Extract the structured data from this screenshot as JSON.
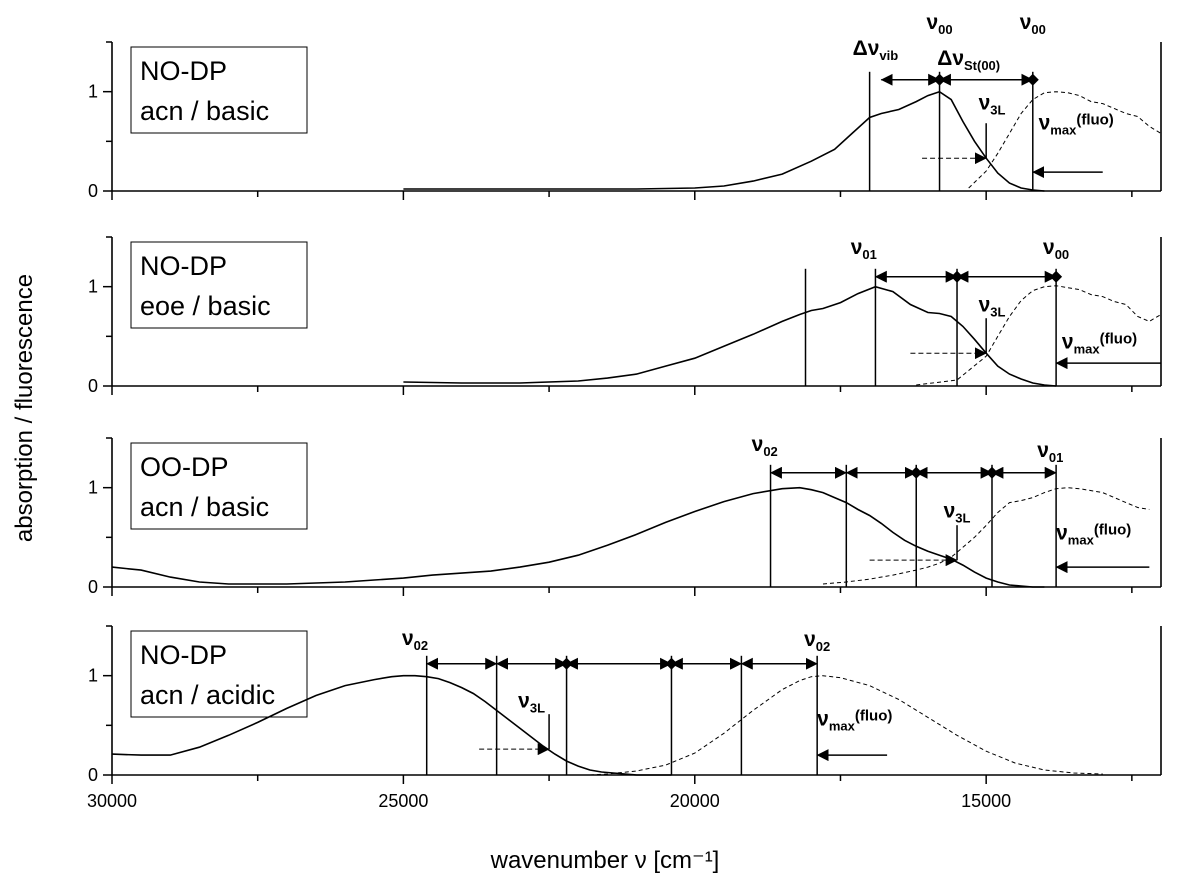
{
  "chart_data": {
    "type": "line",
    "layout": "stacked-panels",
    "xlabel": "wavenumber ν [cm⁻¹]",
    "ylabel": "absorption / fluorescence",
    "xlim": [
      30000,
      12000
    ],
    "x_ticks": [
      30000,
      25000,
      20000,
      15000
    ],
    "x_tick_labels": [
      "30000",
      "25000",
      "20000",
      "15000"
    ],
    "ylim": [
      0,
      1.5
    ],
    "y_ticks": [
      0,
      1
    ],
    "y_tick_labels": [
      "0",
      "1"
    ],
    "panels": [
      {
        "label_line1": "NO-DP",
        "label_line2": "acn / basic",
        "absorption": {
          "line_style": "solid",
          "x": [
            25000,
            24000,
            23000,
            22000,
            21000,
            20000,
            19500,
            19000,
            18500,
            18000,
            17600,
            17300,
            17000,
            16800,
            16500,
            16200,
            16000,
            15800,
            15600,
            15400,
            15200,
            15000,
            14800,
            14600,
            14400,
            14200,
            14000
          ],
          "y": [
            0.02,
            0.02,
            0.02,
            0.02,
            0.02,
            0.03,
            0.05,
            0.1,
            0.17,
            0.3,
            0.42,
            0.58,
            0.74,
            0.78,
            0.82,
            0.9,
            0.96,
            1.0,
            0.92,
            0.7,
            0.5,
            0.33,
            0.18,
            0.08,
            0.03,
            0.01,
            0.0
          ]
        },
        "fluorescence": {
          "line_style": "dashed",
          "x": [
            15300,
            15000,
            14800,
            14600,
            14400,
            14200,
            14000,
            13800,
            13600,
            13400,
            13200,
            13000,
            12800,
            12600,
            12400,
            12200,
            12000
          ],
          "y": [
            0.03,
            0.2,
            0.38,
            0.58,
            0.78,
            0.92,
            0.99,
            1.0,
            0.99,
            0.96,
            0.9,
            0.88,
            0.83,
            0.78,
            0.75,
            0.65,
            0.58
          ]
        },
        "vertical_lines": [
          17000,
          15800,
          14200
        ],
        "arrows": [
          [
            16800,
            15800
          ],
          [
            15800,
            14200
          ]
        ],
        "arrow_y": 1.12,
        "markers": [
          15800,
          14200
        ],
        "nu3L_x": 15000,
        "nu3L_y": 0.33,
        "dashed_arrow_from_x": 16100,
        "fluo_arrow_from_x": 13000,
        "fluo_arrow_to_x": 14200,
        "fluo_arrow_y": 0.19,
        "annotations": [
          {
            "text": "Δν",
            "sub": "vib",
            "x": 16900,
            "y": 1.37
          },
          {
            "text": "ν",
            "sub": "00",
            "x": 15800,
            "y": 1.63
          },
          {
            "text": "Δν",
            "sub": "St(00)",
            "x": 15300,
            "y": 1.27
          },
          {
            "text": "ν",
            "sub": "00",
            "x": 14200,
            "y": 1.63
          },
          {
            "text": "ν",
            "sub": "3L",
            "x": 14900,
            "y": 0.82
          },
          {
            "text": "ν",
            "sub": "max",
            "suffix": "(fluo)",
            "x": 14100,
            "y": 0.62
          }
        ]
      },
      {
        "label_line1": "NO-DP",
        "label_line2": "eoe / basic",
        "absorption": {
          "line_style": "solid",
          "x": [
            25000,
            24000,
            23000,
            22000,
            21500,
            21000,
            20500,
            20000,
            19500,
            19000,
            18500,
            18200,
            18000,
            17800,
            17500,
            17200,
            16900,
            16600,
            16300,
            16000,
            15800,
            15600,
            15400,
            15200,
            15000,
            14800,
            14600,
            14400,
            14200,
            14000,
            13800
          ],
          "y": [
            0.04,
            0.03,
            0.03,
            0.05,
            0.08,
            0.12,
            0.2,
            0.28,
            0.4,
            0.52,
            0.65,
            0.72,
            0.76,
            0.78,
            0.84,
            0.93,
            1.0,
            0.95,
            0.82,
            0.74,
            0.73,
            0.7,
            0.6,
            0.47,
            0.33,
            0.2,
            0.12,
            0.07,
            0.03,
            0.01,
            0.0
          ]
        },
        "fluorescence": {
          "line_style": "dashed",
          "x": [
            16200,
            15500,
            15000,
            14800,
            14600,
            14400,
            14200,
            14000,
            13800,
            13600,
            13400,
            13200,
            13000,
            12800,
            12600,
            12400,
            12200,
            12000
          ],
          "y": [
            0.01,
            0.06,
            0.3,
            0.5,
            0.7,
            0.86,
            0.96,
            1.0,
            1.01,
            0.99,
            0.97,
            0.92,
            0.9,
            0.85,
            0.82,
            0.7,
            0.65,
            0.72
          ]
        },
        "vertical_lines": [
          18100,
          16900,
          15500,
          13800
        ],
        "arrows": [
          [
            16900,
            15500
          ],
          [
            15500,
            13800
          ]
        ],
        "arrow_y": 1.1,
        "markers": [
          15500,
          13800
        ],
        "nu3L_x": 15000,
        "nu3L_y": 0.33,
        "dashed_arrow_from_x": 16300,
        "fluo_arrow_from_x": 12000,
        "fluo_arrow_to_x": 13800,
        "fluo_arrow_y": 0.23,
        "annotations": [
          {
            "text": "ν",
            "sub": "01",
            "x": 17100,
            "y": 1.33
          },
          {
            "text": "ν",
            "sub": "00",
            "x": 13800,
            "y": 1.33
          },
          {
            "text": "ν",
            "sub": "3L",
            "x": 14900,
            "y": 0.75
          },
          {
            "text": "ν",
            "sub": "max",
            "suffix": "(fluo)",
            "x": 13700,
            "y": 0.38
          }
        ]
      },
      {
        "label_line1": "OO-DP",
        "label_line2": "acn / basic",
        "absorption": {
          "line_style": "solid",
          "x": [
            30000,
            29500,
            29000,
            28500,
            28000,
            27500,
            27000,
            26500,
            26000,
            25500,
            25000,
            24500,
            24000,
            23500,
            23000,
            22500,
            22000,
            21500,
            21000,
            20500,
            20000,
            19500,
            19000,
            18500,
            18200,
            18000,
            17800,
            17600,
            17400,
            17200,
            17000,
            16800,
            16600,
            16400,
            16200,
            16000,
            15800,
            15600,
            15400,
            15200,
            15000,
            14800,
            14600,
            14400,
            14200,
            14000
          ],
          "y": [
            0.2,
            0.17,
            0.1,
            0.05,
            0.03,
            0.03,
            0.03,
            0.04,
            0.05,
            0.07,
            0.09,
            0.12,
            0.14,
            0.16,
            0.2,
            0.25,
            0.32,
            0.42,
            0.53,
            0.65,
            0.76,
            0.86,
            0.94,
            0.99,
            1.0,
            0.98,
            0.95,
            0.9,
            0.85,
            0.78,
            0.72,
            0.64,
            0.55,
            0.47,
            0.41,
            0.36,
            0.32,
            0.28,
            0.22,
            0.15,
            0.09,
            0.05,
            0.02,
            0.01,
            0.0,
            0.0
          ]
        },
        "fluorescence": {
          "line_style": "dashed",
          "x": [
            17800,
            17400,
            17000,
            16600,
            16200,
            16000,
            15800,
            15600,
            15400,
            15200,
            15000,
            14800,
            14600,
            14400,
            14200,
            14000,
            13800,
            13600,
            13400,
            13200,
            13000,
            12800,
            12600,
            12400,
            12200
          ],
          "y": [
            0.03,
            0.05,
            0.08,
            0.12,
            0.17,
            0.2,
            0.24,
            0.3,
            0.4,
            0.5,
            0.62,
            0.75,
            0.85,
            0.87,
            0.9,
            0.95,
            0.99,
            1.0,
            0.99,
            0.97,
            0.95,
            0.9,
            0.85,
            0.8,
            0.78
          ]
        },
        "vertical_lines": [
          18700,
          17400,
          16200,
          14900,
          13800
        ],
        "arrows": [
          [
            18700,
            17400
          ],
          [
            17400,
            16200
          ],
          [
            16200,
            14900
          ],
          [
            14900,
            13800
          ]
        ],
        "arrow_y": 1.15,
        "markers": [
          16200,
          14900
        ],
        "nu3L_x": 15500,
        "nu3L_y": 0.27,
        "dashed_arrow_from_x": 17000,
        "fluo_arrow_from_x": 12200,
        "fluo_arrow_to_x": 13800,
        "fluo_arrow_y": 0.2,
        "annotations": [
          {
            "text": "ν",
            "sub": "02",
            "x": 18800,
            "y": 1.37
          },
          {
            "text": "ν",
            "sub": "01",
            "x": 13900,
            "y": 1.31
          },
          {
            "text": "ν",
            "sub": "3L",
            "x": 15500,
            "y": 0.7
          },
          {
            "text": "ν",
            "sub": "max",
            "suffix": "(fluo)",
            "x": 13800,
            "y": 0.48
          }
        ]
      },
      {
        "label_line1": "NO-DP",
        "label_line2": "acn / acidic",
        "absorption": {
          "line_style": "solid",
          "x": [
            30000,
            29500,
            29000,
            28500,
            28000,
            27500,
            27000,
            26500,
            26000,
            25500,
            25200,
            25000,
            24800,
            24600,
            24400,
            24200,
            24000,
            23800,
            23600,
            23400,
            23200,
            23000,
            22800,
            22600,
            22400,
            22200,
            22000,
            21800,
            21600,
            21400,
            21200,
            21000,
            20800,
            20600,
            20400
          ],
          "y": [
            0.21,
            0.2,
            0.2,
            0.28,
            0.4,
            0.53,
            0.67,
            0.8,
            0.9,
            0.96,
            0.99,
            1.0,
            1.0,
            0.99,
            0.97,
            0.93,
            0.88,
            0.82,
            0.74,
            0.65,
            0.56,
            0.47,
            0.38,
            0.29,
            0.21,
            0.14,
            0.09,
            0.05,
            0.03,
            0.02,
            0.01,
            0.0,
            0.0,
            0.0,
            0.0
          ]
        },
        "fluorescence": {
          "line_style": "dashed",
          "x": [
            21800,
            21500,
            21000,
            20500,
            20000,
            19500,
            19000,
            18500,
            18200,
            18000,
            17800,
            17500,
            17000,
            16500,
            16000,
            15500,
            15000,
            14500,
            14000,
            13500,
            13000
          ],
          "y": [
            0.0,
            0.01,
            0.04,
            0.1,
            0.22,
            0.42,
            0.65,
            0.86,
            0.95,
            0.99,
            1.0,
            0.98,
            0.9,
            0.76,
            0.58,
            0.4,
            0.24,
            0.12,
            0.05,
            0.02,
            0.01
          ]
        },
        "vertical_lines": [
          24600,
          23400,
          22200,
          20400,
          19200,
          17900
        ],
        "arrows": [
          [
            24600,
            23400
          ],
          [
            23400,
            22200
          ],
          [
            22200,
            20400
          ],
          [
            20400,
            19200
          ],
          [
            19200,
            17900
          ]
        ],
        "arrow_y": 1.12,
        "markers": [
          22200,
          20400
        ],
        "nu3L_x": 22500,
        "nu3L_y": 0.26,
        "dashed_arrow_from_x": 23700,
        "fluo_arrow_from_x": 16700,
        "fluo_arrow_to_x": 17900,
        "fluo_arrow_y": 0.2,
        "annotations": [
          {
            "text": "ν",
            "sub": "02",
            "x": 24800,
            "y": 1.31
          },
          {
            "text": "ν",
            "sub": "02",
            "x": 17900,
            "y": 1.3
          },
          {
            "text": "ν",
            "sub": "3L",
            "x": 22800,
            "y": 0.68
          },
          {
            "text": "ν",
            "sub": "max",
            "suffix": "(fluo)",
            "x": 17900,
            "y": 0.5
          }
        ]
      }
    ]
  }
}
